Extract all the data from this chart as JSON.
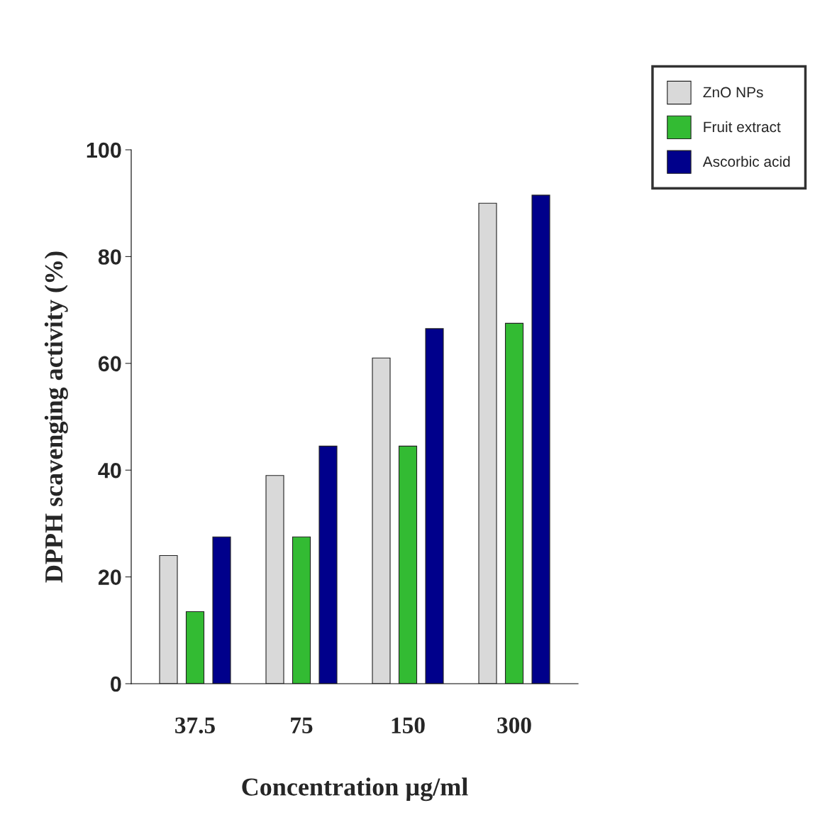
{
  "chart_data": {
    "type": "bar",
    "xlabel": "Concentration µg/ml",
    "ylabel": "DPPH scavenging activity (%)",
    "categories": [
      "37.5",
      "75",
      "150",
      "300"
    ],
    "series": [
      {
        "name": "ZnO NPs",
        "color": "#d9d9d9",
        "values": [
          24,
          39,
          61,
          90
        ]
      },
      {
        "name": "Fruit extract",
        "color": "#33bb33",
        "values": [
          13.5,
          27.5,
          44.5,
          67.5
        ]
      },
      {
        "name": "Ascorbic acid",
        "color": "#00008b",
        "values": [
          27.5,
          44.5,
          66.5,
          91.5
        ]
      }
    ],
    "ylim": [
      0,
      100
    ],
    "yticks": [
      0,
      20,
      40,
      60,
      80,
      100
    ],
    "grid": false,
    "legend": "top right"
  }
}
